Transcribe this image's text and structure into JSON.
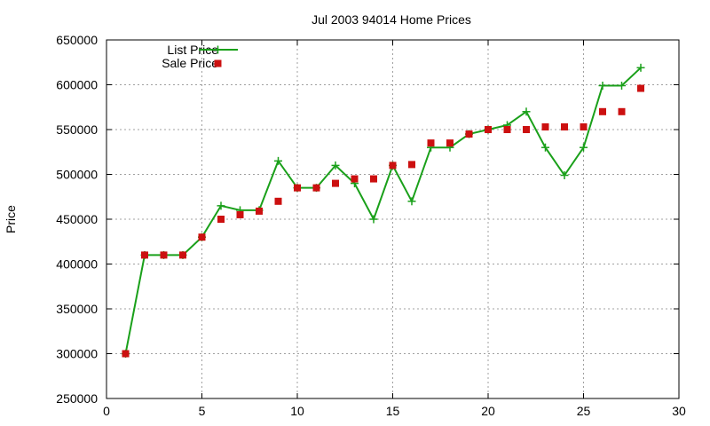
{
  "chart_data": {
    "type": "line",
    "title": "Jul 2003 94014 Home Prices",
    "xlabel": "",
    "ylabel": "Price",
    "xlim": [
      0,
      30
    ],
    "ylim": [
      250000,
      650000
    ],
    "x_ticks": [
      0,
      5,
      10,
      15,
      20,
      25,
      30
    ],
    "y_ticks": [
      250000,
      300000,
      350000,
      400000,
      450000,
      500000,
      550000,
      600000,
      650000
    ],
    "grid": true,
    "legend_position": "top-left",
    "series": [
      {
        "name": "List Price",
        "style": "line+cross",
        "color": "#1aa01a",
        "x": [
          1,
          2,
          3,
          4,
          5,
          6,
          7,
          8,
          9,
          10,
          11,
          12,
          13,
          14,
          15,
          16,
          17,
          18,
          19,
          20,
          21,
          22,
          23,
          24,
          25,
          26,
          27,
          28
        ],
        "values": [
          300000,
          410000,
          410000,
          410000,
          430000,
          465000,
          460000,
          460000,
          515000,
          485000,
          485000,
          510000,
          490000,
          450000,
          510000,
          470000,
          530000,
          530000,
          545000,
          550000,
          555000,
          570000,
          530000,
          499000,
          530000,
          599000,
          599000,
          619000
        ]
      },
      {
        "name": "Sale Price",
        "style": "square",
        "color": "#cc1010",
        "x": [
          1,
          2,
          3,
          4,
          5,
          6,
          7,
          8,
          9,
          10,
          11,
          12,
          13,
          14,
          15,
          16,
          17,
          18,
          19,
          20,
          21,
          22,
          23,
          24,
          25,
          26,
          27,
          28
        ],
        "values": [
          300000,
          410000,
          410000,
          410000,
          430000,
          450000,
          455000,
          459000,
          470000,
          485000,
          485000,
          490000,
          495000,
          495000,
          510000,
          511000,
          535000,
          535000,
          545000,
          550000,
          550000,
          550000,
          553000,
          553000,
          553000,
          570000,
          570000,
          596000
        ]
      }
    ]
  }
}
